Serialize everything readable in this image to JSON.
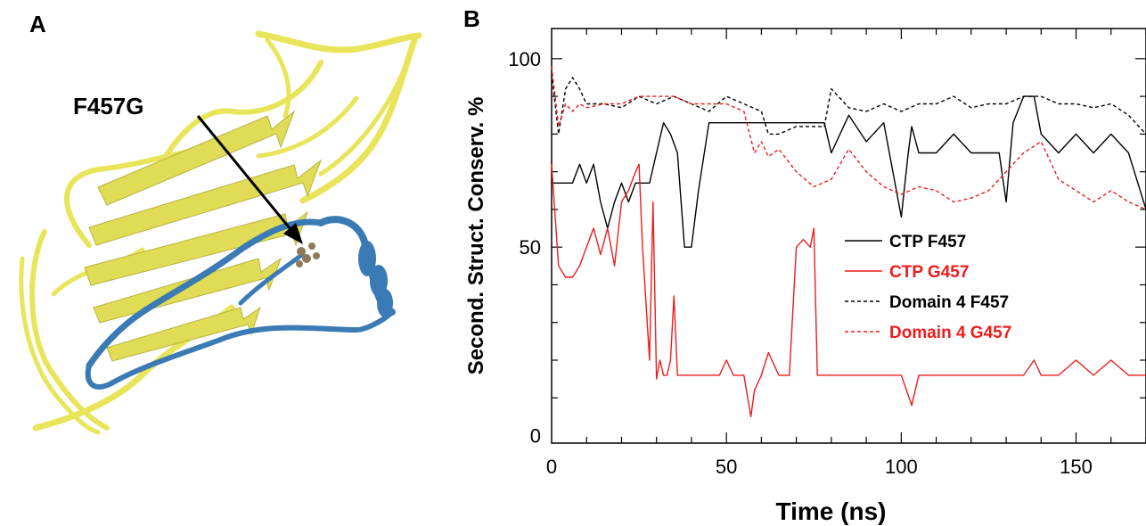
{
  "panels": {
    "a_label": "A",
    "b_label": "B"
  },
  "structure": {
    "annotation": "F457G",
    "colors": {
      "domain": "#e9e55a",
      "loop": "#3a7ab5",
      "residue": "#8c7a5a"
    }
  },
  "chart_data": {
    "type": "line",
    "xlabel": "Time (ns)",
    "ylabel": "Second. Struct. Conserv. %",
    "xlim": [
      0,
      170
    ],
    "ylim": [
      -2,
      108
    ],
    "xticks": [
      0,
      50,
      100,
      150
    ],
    "yticks": [
      0,
      50,
      100
    ],
    "legend_position": "center-right",
    "series": [
      {
        "name": "CTP F457",
        "color": "#000000",
        "dash": "solid",
        "x": [
          0,
          2,
          4,
          6,
          8,
          10,
          12,
          14,
          16,
          18,
          20,
          22,
          24,
          26,
          28,
          30,
          32,
          34,
          36,
          38,
          40,
          42,
          45,
          50,
          55,
          60,
          65,
          70,
          75,
          78,
          80,
          85,
          90,
          95,
          100,
          102,
          103,
          105,
          110,
          115,
          120,
          125,
          128,
          130,
          132,
          135,
          138,
          140,
          145,
          150,
          155,
          160,
          165,
          170
        ],
        "y": [
          67,
          67,
          67,
          67,
          72,
          67,
          72,
          62,
          55,
          62,
          67,
          62,
          67,
          67,
          67,
          75,
          83,
          80,
          75,
          50,
          50,
          65,
          83,
          83,
          83,
          83,
          83,
          83,
          83,
          83,
          75,
          85,
          78,
          83,
          58,
          75,
          82,
          75,
          75,
          80,
          75,
          75,
          75,
          62,
          83,
          90,
          90,
          80,
          75,
          80,
          75,
          80,
          75,
          60
        ]
      },
      {
        "name": "CTP G457",
        "color": "#ee1c1c",
        "dash": "solid",
        "x": [
          0,
          2,
          4,
          6,
          8,
          10,
          12,
          14,
          16,
          18,
          20,
          22,
          24,
          25,
          26,
          28,
          29,
          30,
          31,
          32,
          33,
          34,
          35,
          36,
          40,
          45,
          48,
          50,
          52,
          55,
          57,
          58,
          60,
          62,
          65,
          68,
          70,
          72,
          74,
          75,
          76,
          80,
          90,
          100,
          103,
          105,
          110,
          120,
          130,
          135,
          138,
          140,
          145,
          150,
          155,
          160,
          165,
          170
        ],
        "y": [
          72,
          45,
          42,
          42,
          45,
          50,
          55,
          48,
          55,
          45,
          62,
          65,
          70,
          72,
          50,
          20,
          62,
          15,
          20,
          16,
          16,
          20,
          37,
          16,
          16,
          16,
          16,
          20,
          16,
          16,
          5,
          12,
          16,
          22,
          16,
          16,
          50,
          52,
          50,
          55,
          16,
          16,
          16,
          16,
          8,
          16,
          16,
          16,
          16,
          16,
          20,
          16,
          16,
          20,
          16,
          20,
          16,
          16
        ]
      },
      {
        "name": "Domain 4 F457",
        "color": "#000000",
        "dash": "dashed",
        "x": [
          0,
          2,
          4,
          6,
          8,
          10,
          15,
          20,
          25,
          30,
          35,
          40,
          45,
          50,
          55,
          60,
          62,
          65,
          70,
          75,
          78,
          80,
          85,
          90,
          95,
          100,
          105,
          110,
          115,
          120,
          125,
          130,
          135,
          140,
          145,
          150,
          155,
          160,
          165,
          170
        ],
        "y": [
          96,
          80,
          92,
          95,
          92,
          88,
          88,
          87,
          90,
          88,
          90,
          88,
          86,
          90,
          88,
          86,
          80,
          80,
          82,
          82,
          82,
          92,
          87,
          86,
          88,
          86,
          88,
          88,
          90,
          87,
          88,
          88,
          90,
          90,
          88,
          88,
          87,
          88,
          85,
          80
        ]
      },
      {
        "name": "Domain 4 G457",
        "color": "#ee1c1c",
        "dash": "dashed",
        "x": [
          0,
          2,
          4,
          6,
          8,
          10,
          15,
          20,
          25,
          30,
          35,
          40,
          45,
          50,
          55,
          58,
          60,
          62,
          65,
          70,
          75,
          80,
          85,
          90,
          95,
          100,
          105,
          110,
          115,
          120,
          125,
          130,
          135,
          140,
          145,
          150,
          155,
          160,
          165,
          170
        ],
        "y": [
          98,
          82,
          88,
          86,
          88,
          87,
          88,
          88,
          90,
          90,
          90,
          88,
          88,
          88,
          86,
          75,
          78,
          74,
          76,
          70,
          66,
          68,
          76,
          70,
          66,
          64,
          66,
          65,
          62,
          63,
          65,
          70,
          75,
          78,
          68,
          65,
          62,
          65,
          62,
          60
        ]
      }
    ]
  }
}
